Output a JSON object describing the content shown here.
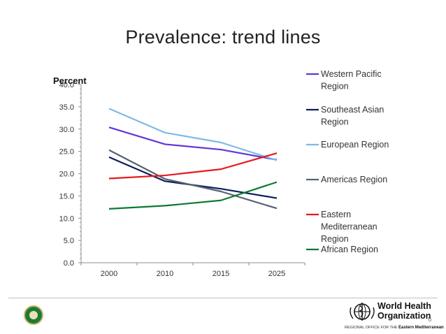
{
  "slide": {
    "title": "Prevalence: trend lines",
    "page_number": "6"
  },
  "footer": {
    "who_name_line1": "World Health",
    "who_name_line2": "Organization",
    "regional_office": "REGIONAL OFFICE FOR THE",
    "region": "Eastern Mediterranean"
  },
  "colors": {
    "western_pacific": "#6236d8",
    "southeast_asian": "#0b1f5c",
    "european": "#7cbbe8",
    "americas": "#566273",
    "eastern_mediterranean": "#e8181e",
    "african": "#0c7a33",
    "axis": "#8c8c8c"
  },
  "chart_data": {
    "type": "line",
    "title": "",
    "ylabel": "Percent",
    "xlabel": "",
    "categories": [
      "2000",
      "2010",
      "2015",
      "2025"
    ],
    "ylim": [
      0,
      40
    ],
    "ytick_labels": [
      "0.0",
      "5.0",
      "10.0",
      "15.0",
      "20.0",
      "25.0",
      "30.0",
      "35.0",
      "40.0"
    ],
    "legend_position": "right",
    "series": [
      {
        "name": "Western Pacific Region",
        "legend_lines": [
          "Western Pacific",
          "Region"
        ],
        "color_key": "western_pacific",
        "values": [
          30.4,
          26.6,
          25.4,
          23.1
        ]
      },
      {
        "name": "Southeast Asian Region",
        "legend_lines": [
          "Southeast Asian",
          "Region"
        ],
        "color_key": "southeast_asian",
        "values": [
          23.7,
          18.3,
          16.6,
          14.5
        ]
      },
      {
        "name": "European Region",
        "legend_lines": [
          "European Region"
        ],
        "color_key": "european",
        "values": [
          34.6,
          29.2,
          27.0,
          23.0
        ]
      },
      {
        "name": "Americas Region",
        "legend_lines": [
          "Americas Region"
        ],
        "color_key": "americas",
        "values": [
          25.3,
          18.8,
          16.0,
          12.2
        ]
      },
      {
        "name": "Eastern Mediterranean Region",
        "legend_lines": [
          "Eastern",
          "Mediterranean",
          "Region"
        ],
        "color_key": "eastern_mediterranean",
        "values": [
          18.9,
          19.6,
          21.0,
          24.6
        ]
      },
      {
        "name": "African Region",
        "legend_lines": [
          "African Region"
        ],
        "color_key": "african",
        "values": [
          12.1,
          12.8,
          14.0,
          18.1
        ]
      }
    ]
  }
}
